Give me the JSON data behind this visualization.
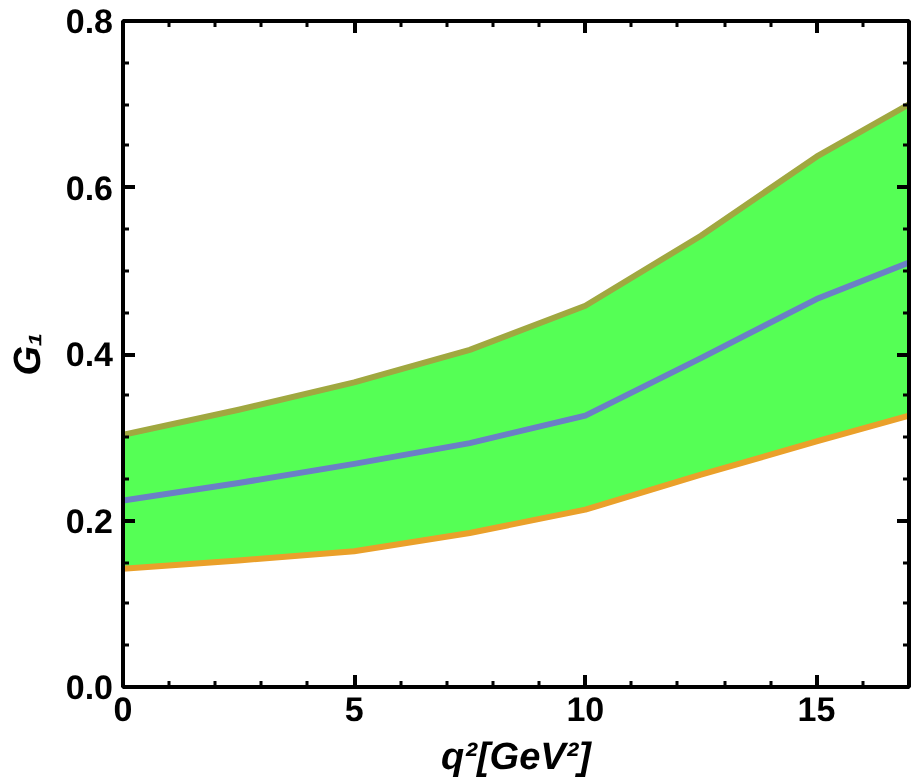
{
  "chart_data": {
    "type": "line",
    "xlabel": "q²[GeV²]",
    "ylabel": "G₁",
    "x": [
      0,
      2.5,
      5,
      7.5,
      10,
      12.5,
      15,
      17
    ],
    "series": [
      {
        "color": "#6b7fc6",
        "values": [
          0.224,
          0.245,
          0.268,
          0.293,
          0.326,
          0.395,
          0.466,
          0.51
        ],
        "lower": [
          0.142,
          0.152,
          0.163,
          0.185,
          0.213,
          0.255,
          0.295,
          0.326
        ],
        "upper": [
          0.303,
          0.333,
          0.366,
          0.405,
          0.458,
          0.542,
          0.637,
          0.7
        ]
      },
      {
        "color": "#a0a840",
        "values": [
          0.303,
          0.333,
          0.366,
          0.405,
          0.458,
          0.542,
          0.637,
          0.7
        ]
      },
      {
        "color": "#eaa02a",
        "values": [
          0.142,
          0.152,
          0.163,
          0.185,
          0.213,
          0.255,
          0.295,
          0.326
        ]
      }
    ],
    "xlim": [
      0,
      17
    ],
    "ylim": [
      0,
      0.8
    ],
    "xticks": [
      0,
      5,
      10,
      15
    ],
    "yticks": [
      {
        "value": 0,
        "label": "0.0"
      },
      0.2,
      0.4,
      0.6,
      0.8
    ],
    "grid": false
  }
}
